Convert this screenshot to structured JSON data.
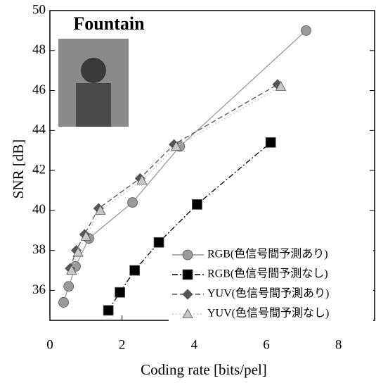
{
  "chart_data": {
    "type": "line",
    "inset_title": "Fountain",
    "x_label": "Coding rate [bits/pel]",
    "y_label": "SNR [dB]",
    "xlim": [
      0,
      9
    ],
    "ylim": [
      34.5,
      50
    ],
    "xticks": [
      0,
      2,
      4,
      6,
      8
    ],
    "yticks": [
      36,
      38,
      40,
      42,
      44,
      46,
      48,
      50
    ],
    "legend": "lower right",
    "series": [
      {
        "name": "RGB(色信号間予測あり)",
        "color": "#9a9a9a",
        "marker": "circle",
        "dash": "solid",
        "x": [
          0.38,
          0.52,
          0.71,
          1.08,
          2.29,
          3.6,
          7.1
        ],
        "values": [
          35.4,
          36.2,
          37.2,
          38.6,
          40.4,
          43.2,
          49.0
        ]
      },
      {
        "name": "RGB(色信号間予測なし)",
        "color": "#000000",
        "marker": "square",
        "dash": "dashdot",
        "x": [
          1.62,
          1.94,
          2.35,
          3.02,
          4.08,
          6.12
        ],
        "values": [
          35.0,
          35.9,
          37.0,
          38.4,
          40.3,
          43.4
        ]
      },
      {
        "name": "YUV(色信号間予測あり)",
        "color": "#555555",
        "marker": "diamond",
        "dash": "dashed",
        "x": [
          0.56,
          0.73,
          0.96,
          1.35,
          2.5,
          3.44,
          6.31
        ],
        "values": [
          37.1,
          38.0,
          38.8,
          40.1,
          41.6,
          43.3,
          46.3
        ]
      },
      {
        "name": "YUV(色信号間予測なし)",
        "color": "#c8c8c8",
        "marker": "triangle",
        "dash": "dotted",
        "x": [
          0.6,
          0.78,
          1.0,
          1.4,
          2.55,
          3.5,
          6.4
        ],
        "values": [
          37.0,
          37.9,
          38.7,
          40.0,
          41.5,
          43.2,
          46.2
        ]
      }
    ]
  }
}
